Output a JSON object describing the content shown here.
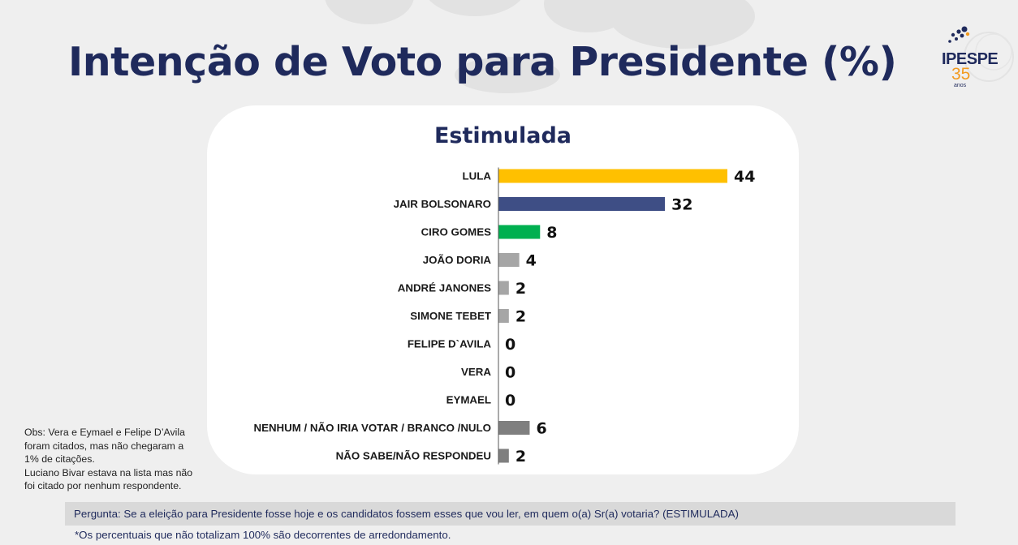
{
  "title": "Intenção de Voto para Presidente (%)",
  "logo": {
    "name": "IPESPE",
    "number": "35",
    "sub": "anos"
  },
  "chart_data": {
    "type": "bar",
    "orientation": "horizontal",
    "title": "Estimulada",
    "categories": [
      "LULA",
      "JAIR BOLSONARO",
      "CIRO GOMES",
      "JOÃO DORIA",
      "ANDRÉ JANONES",
      "SIMONE TEBET",
      "FELIPE D`AVILA",
      "VERA",
      "EYMAEL",
      "NENHUM / NÃO IRIA VOTAR / BRANCO /NULO",
      "NÃO SABE/NÃO RESPONDEU"
    ],
    "values": [
      44,
      32,
      8,
      4,
      2,
      2,
      0,
      0,
      0,
      6,
      2
    ],
    "colors": [
      "#ffc000",
      "#3e4e85",
      "#00b050",
      "#a6a6a6",
      "#a6a6a6",
      "#a6a6a6",
      "#a6a6a6",
      "#a6a6a6",
      "#a6a6a6",
      "#7f7f7f",
      "#7f7f7f"
    ],
    "xlim": [
      0,
      44
    ],
    "grid": false,
    "data_labels": true
  },
  "obs_lines": [
    "Obs: Vera e Eymael e Felipe D’Avila",
    "foram citados, mas não chegaram a",
    "1% de citações.",
    "Luciano Bivar estava na lista mas não",
    "foi citado por nenhum respondente."
  ],
  "question": "Pergunta:  Se a eleição para Presidente fosse hoje e os candidatos fossem esses que vou ler, em quem o(a) Sr(a) votaria? (ESTIMULADA)",
  "footnote": "*Os percentuais que não totalizam 100% são decorrentes de arredondamento."
}
